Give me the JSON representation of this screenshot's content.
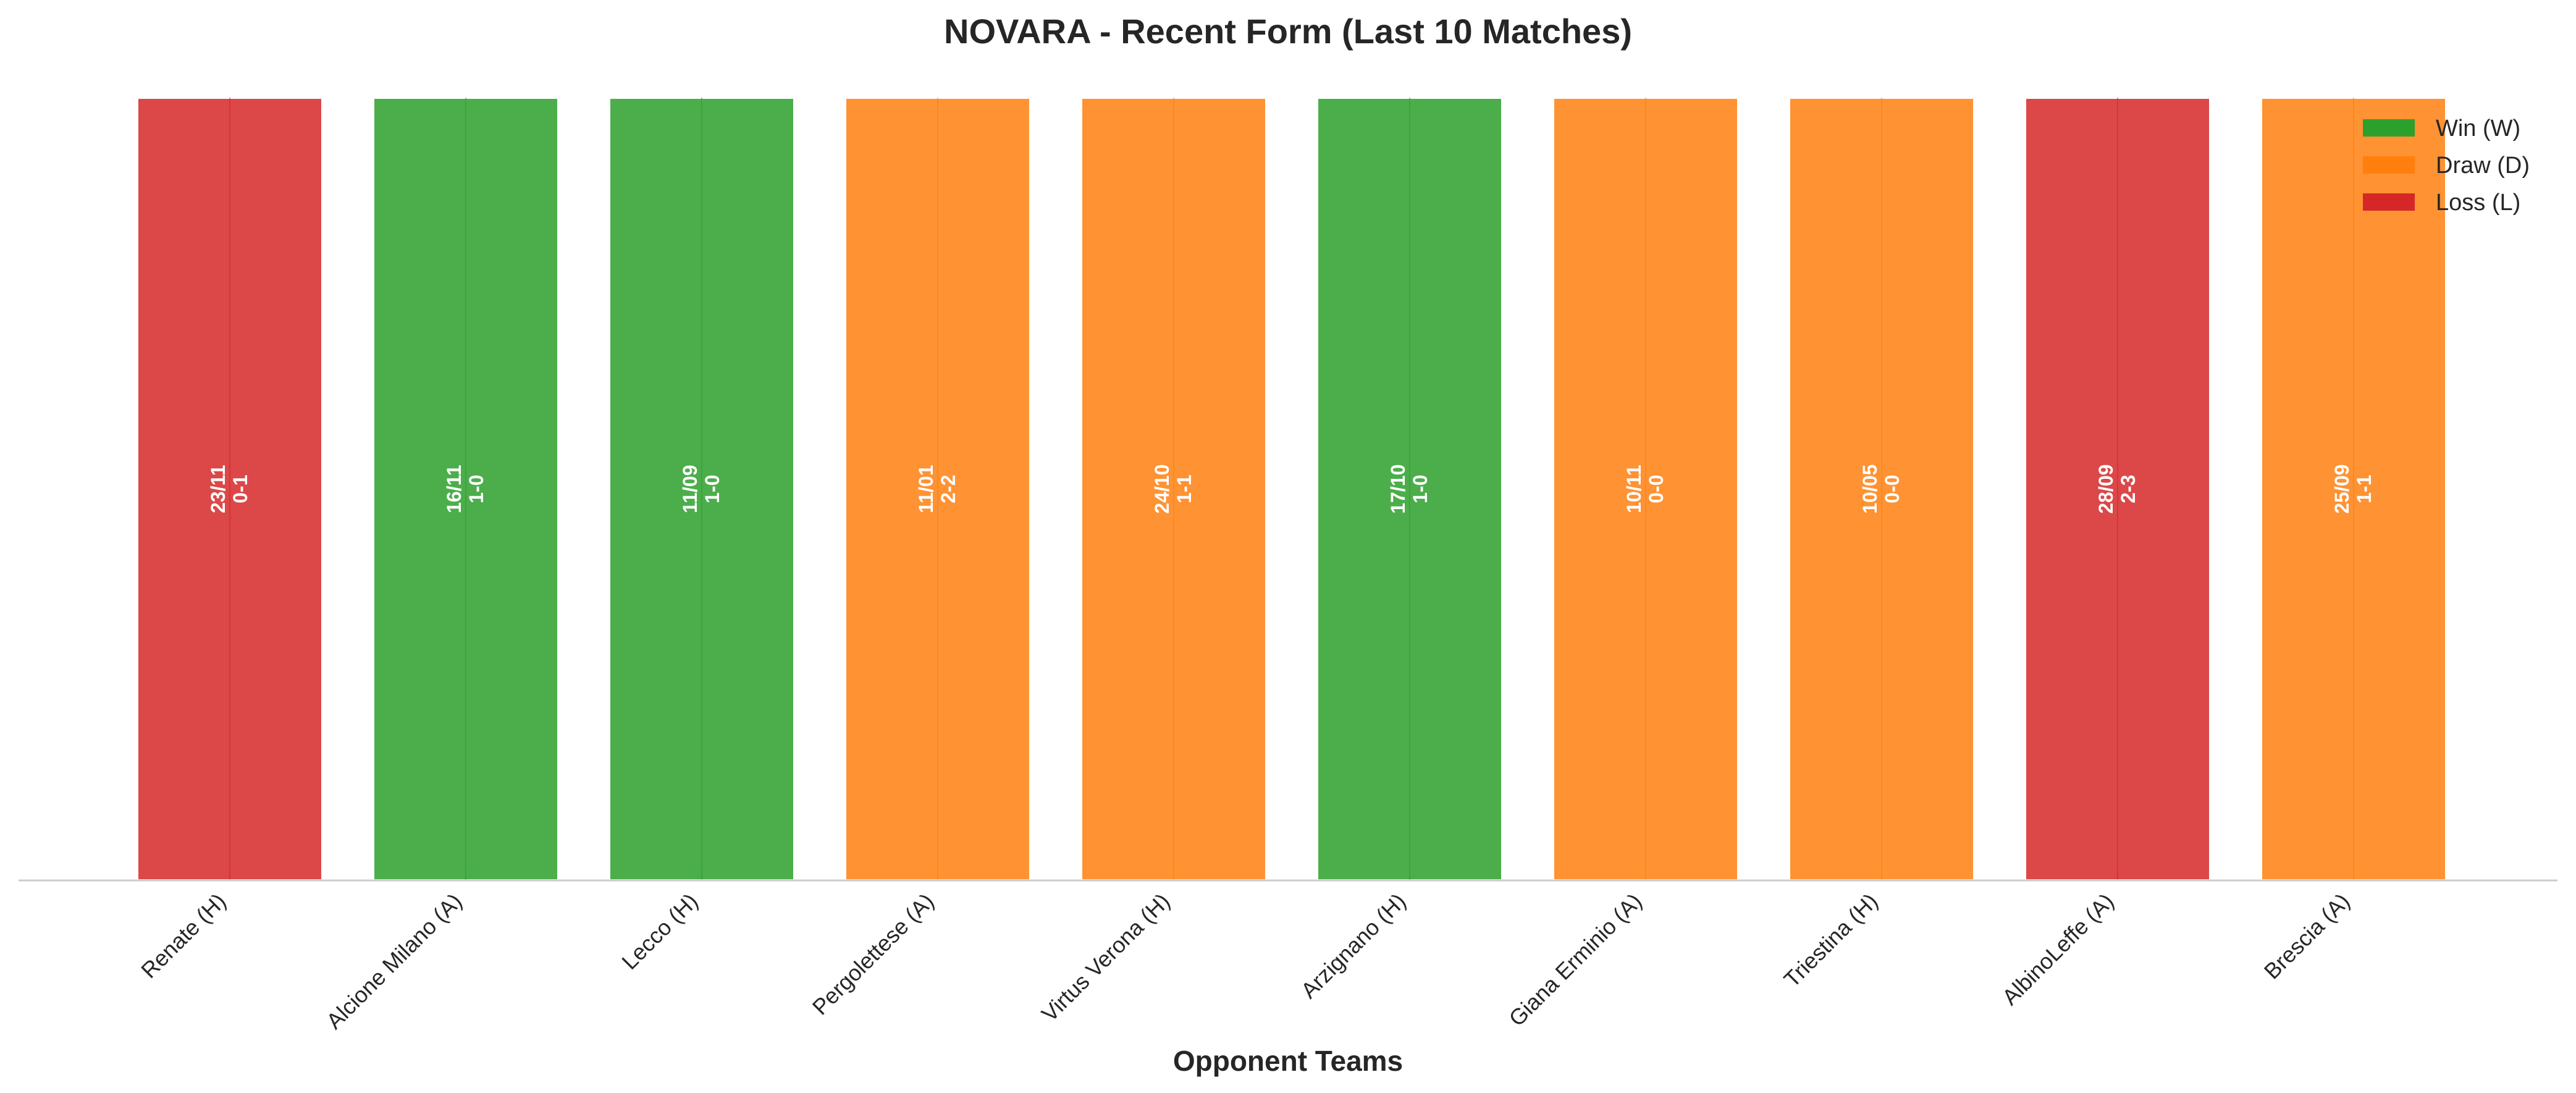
{
  "chart_data": {
    "type": "bar",
    "title": "NOVARA - Recent Form (Last 10 Matches)",
    "xlabel": "Opponent Teams",
    "ylabel": "",
    "ylim": [
      0,
      1
    ],
    "grid": false,
    "legend_position": "top-right",
    "categories": [
      "Renate (H)",
      "Alcione Milano (A)",
      "Lecco (H)",
      "Pergolettese (A)",
      "Virtus Verona (H)",
      "Arzignano (H)",
      "Giana Erminio (A)",
      "Triestina (H)",
      "AlbinoLeffe (A)",
      "Brescia (A)"
    ],
    "values": [
      1,
      1,
      1,
      1,
      1,
      1,
      1,
      1,
      1,
      1
    ],
    "results": [
      "L",
      "W",
      "W",
      "D",
      "D",
      "W",
      "D",
      "D",
      "L",
      "D"
    ],
    "dates": [
      "23/11",
      "16/11",
      "11/09",
      "11/01",
      "24/10",
      "17/10",
      "10/11",
      "10/05",
      "28/09",
      "25/09"
    ],
    "scores": [
      "0-1",
      "1-0",
      "1-0",
      "2-2",
      "1-1",
      "1-0",
      "0-0",
      "0-0",
      "2-3",
      "1-1"
    ],
    "legend": [
      {
        "key": "W",
        "label": "Win (W)",
        "color": "#2ca02c"
      },
      {
        "key": "D",
        "label": "Draw (D)",
        "color": "#ff7f0e"
      },
      {
        "key": "L",
        "label": "Loss (L)",
        "color": "#d62728"
      }
    ]
  }
}
